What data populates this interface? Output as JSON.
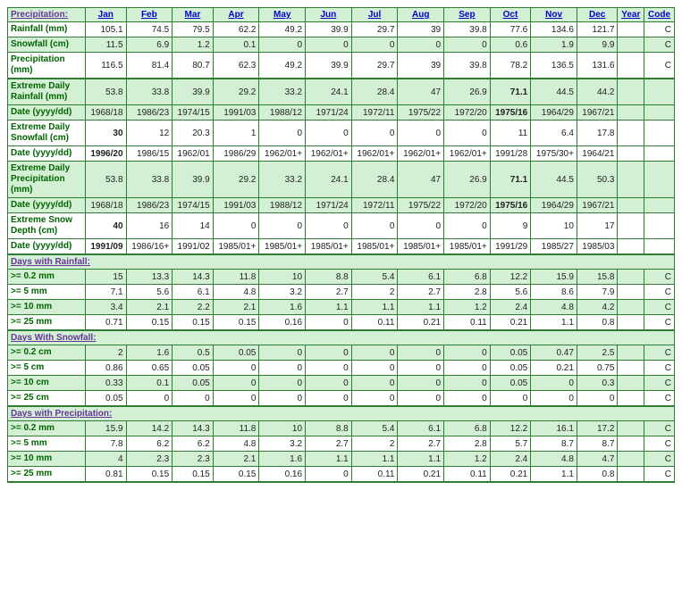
{
  "table": {
    "corner_label": "Precipitation:",
    "month_headers": [
      "Jan",
      "Feb",
      "Mar",
      "Apr",
      "May",
      "Jun",
      "Jul",
      "Aug",
      "Sep",
      "Oct",
      "Nov",
      "Dec"
    ],
    "extra_headers": [
      "Year",
      "Code"
    ],
    "sections": {
      "days_rainfall": "Days with Rainfall:",
      "days_snowfall": "Days With Snowfall:",
      "days_precip": "Days with Precipitation:"
    },
    "rows": [
      {
        "label": "Rainfall (mm)",
        "shaded": false,
        "values": [
          "105.1",
          "74.5",
          "79.5",
          "62.2",
          "49.2",
          "39.9",
          "29.7",
          "39",
          "39.8",
          "77.6",
          "134.6",
          "121.7",
          "",
          "C"
        ],
        "bold": []
      },
      {
        "label": "Snowfall (cm)",
        "shaded": true,
        "values": [
          "11.5",
          "6.9",
          "1.2",
          "0.1",
          "0",
          "0",
          "0",
          "0",
          "0",
          "0.6",
          "1.9",
          "9.9",
          "",
          "C"
        ],
        "bold": []
      },
      {
        "label": "Precipitation (mm)",
        "shaded": false,
        "thick_bottom": true,
        "values": [
          "116.5",
          "81.4",
          "80.7",
          "62.3",
          "49.2",
          "39.9",
          "29.7",
          "39",
          "39.8",
          "78.2",
          "136.5",
          "131.6",
          "",
          "C"
        ],
        "bold": []
      },
      {
        "label": "Extreme Daily Rainfall (mm)",
        "shaded": true,
        "values": [
          "53.8",
          "33.8",
          "39.9",
          "29.2",
          "33.2",
          "24.1",
          "28.4",
          "47",
          "26.9",
          "71.1",
          "44.5",
          "44.2",
          "",
          ""
        ],
        "bold": [
          9
        ]
      },
      {
        "label": "Date (yyyy/dd)",
        "shaded": true,
        "values": [
          "1968/18",
          "1986/23",
          "1974/15",
          "1991/03",
          "1988/12",
          "1971/24",
          "1972/11",
          "1975/22",
          "1972/20",
          "1975/16",
          "1964/29",
          "1967/21",
          "",
          ""
        ],
        "bold": [
          9
        ]
      },
      {
        "label": "Extreme Daily Snowfall (cm)",
        "shaded": false,
        "values": [
          "30",
          "12",
          "20.3",
          "1",
          "0",
          "0",
          "0",
          "0",
          "0",
          "11",
          "6.4",
          "17.8",
          "",
          ""
        ],
        "bold": [
          0
        ]
      },
      {
        "label": "Date (yyyy/dd)",
        "shaded": false,
        "values": [
          "1996/20",
          "1986/15",
          "1962/01",
          "1986/29",
          "1962/01+",
          "1962/01+",
          "1962/01+",
          "1962/01+",
          "1962/01+",
          "1991/28",
          "1975/30+",
          "1964/21",
          "",
          ""
        ],
        "bold": [
          0
        ]
      },
      {
        "label": "Extreme Daily Precipitation (mm)",
        "shaded": true,
        "values": [
          "53.8",
          "33.8",
          "39.9",
          "29.2",
          "33.2",
          "24.1",
          "28.4",
          "47",
          "26.9",
          "71.1",
          "44.5",
          "50.3",
          "",
          ""
        ],
        "bold": [
          9
        ]
      },
      {
        "label": "Date (yyyy/dd)",
        "shaded": true,
        "values": [
          "1968/18",
          "1986/23",
          "1974/15",
          "1991/03",
          "1988/12",
          "1971/24",
          "1972/11",
          "1975/22",
          "1972/20",
          "1975/16",
          "1964/29",
          "1967/21",
          "",
          ""
        ],
        "bold": [
          9
        ]
      },
      {
        "label": "Extreme Snow Depth (cm)",
        "shaded": false,
        "values": [
          "40",
          "16",
          "14",
          "0",
          "0",
          "0",
          "0",
          "0",
          "0",
          "9",
          "10",
          "17",
          "",
          ""
        ],
        "bold": [
          0
        ]
      },
      {
        "label": "Date (yyyy/dd)",
        "shaded": false,
        "thick_bottom": true,
        "values": [
          "1991/09",
          "1986/16+",
          "1991/02",
          "1985/01+",
          "1985/01+",
          "1985/01+",
          "1985/01+",
          "1985/01+",
          "1985/01+",
          "1991/29",
          "1985/27",
          "1985/03",
          "",
          ""
        ],
        "bold": [
          0
        ]
      }
    ],
    "days_rainfall_rows": [
      {
        "label": ">= 0.2 mm",
        "shaded": true,
        "values": [
          "15",
          "13.3",
          "14.3",
          "11.8",
          "10",
          "8.8",
          "5.4",
          "6.1",
          "6.8",
          "12.2",
          "15.9",
          "15.8",
          "",
          "C"
        ]
      },
      {
        "label": ">= 5 mm",
        "shaded": false,
        "values": [
          "7.1",
          "5.6",
          "6.1",
          "4.8",
          "3.2",
          "2.7",
          "2",
          "2.7",
          "2.8",
          "5.6",
          "8.6",
          "7.9",
          "",
          "C"
        ]
      },
      {
        "label": ">= 10 mm",
        "shaded": true,
        "values": [
          "3.4",
          "2.1",
          "2.2",
          "2.1",
          "1.6",
          "1.1",
          "1.1",
          "1.1",
          "1.2",
          "2.4",
          "4.8",
          "4.2",
          "",
          "C"
        ]
      },
      {
        "label": ">= 25 mm",
        "shaded": false,
        "thick_bottom": true,
        "values": [
          "0.71",
          "0.15",
          "0.15",
          "0.15",
          "0.16",
          "0",
          "0.11",
          "0.21",
          "0.11",
          "0.21",
          "1.1",
          "0.8",
          "",
          "C"
        ]
      }
    ],
    "days_snowfall_rows": [
      {
        "label": ">= 0.2 cm",
        "shaded": true,
        "values": [
          "2",
          "1.6",
          "0.5",
          "0.05",
          "0",
          "0",
          "0",
          "0",
          "0",
          "0.05",
          "0.47",
          "2.5",
          "",
          "C"
        ]
      },
      {
        "label": ">= 5 cm",
        "shaded": false,
        "values": [
          "0.86",
          "0.65",
          "0.05",
          "0",
          "0",
          "0",
          "0",
          "0",
          "0",
          "0.05",
          "0.21",
          "0.75",
          "",
          "C"
        ]
      },
      {
        "label": ">= 10 cm",
        "shaded": true,
        "values": [
          "0.33",
          "0.1",
          "0.05",
          "0",
          "0",
          "0",
          "0",
          "0",
          "0",
          "0.05",
          "0",
          "0.3",
          "",
          "C"
        ]
      },
      {
        "label": ">= 25 cm",
        "shaded": false,
        "thick_bottom": true,
        "values": [
          "0.05",
          "0",
          "0",
          "0",
          "0",
          "0",
          "0",
          "0",
          "0",
          "0",
          "0",
          "0",
          "",
          "C"
        ]
      }
    ],
    "days_precip_rows": [
      {
        "label": ">= 0.2 mm",
        "shaded": true,
        "values": [
          "15.9",
          "14.2",
          "14.3",
          "11.8",
          "10",
          "8.8",
          "5.4",
          "6.1",
          "6.8",
          "12.2",
          "16.1",
          "17.2",
          "",
          "C"
        ]
      },
      {
        "label": ">= 5 mm",
        "shaded": false,
        "values": [
          "7.8",
          "6.2",
          "6.2",
          "4.8",
          "3.2",
          "2.7",
          "2",
          "2.7",
          "2.8",
          "5.7",
          "8.7",
          "8.7",
          "",
          "C"
        ]
      },
      {
        "label": ">= 10 mm",
        "shaded": true,
        "values": [
          "4",
          "2.3",
          "2.3",
          "2.1",
          "1.6",
          "1.1",
          "1.1",
          "1.1",
          "1.2",
          "2.4",
          "4.8",
          "4.7",
          "",
          "C"
        ]
      },
      {
        "label": ">= 25 mm",
        "shaded": false,
        "thick_bottom": true,
        "values": [
          "0.81",
          "0.15",
          "0.15",
          "0.15",
          "0.16",
          "0",
          "0.11",
          "0.21",
          "0.11",
          "0.21",
          "1.1",
          "0.8",
          "",
          "C"
        ]
      }
    ]
  },
  "colors": {
    "border": "#2e7d32",
    "shaded_bg": "#d4f0d4",
    "header_link": "#0000cc",
    "row_header": "#006400",
    "section_header": "#663399"
  }
}
